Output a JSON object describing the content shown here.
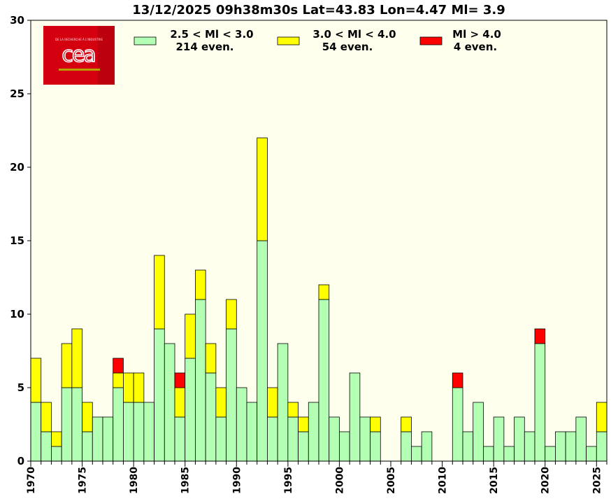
{
  "chart_data": {
    "type": "bar",
    "stacked": true,
    "title": "13/12/2025 09h38m30s Lat=43.83 Lon=4.47 Ml= 3.9",
    "xlabel": "",
    "ylabel": "",
    "ylim": [
      0,
      30
    ],
    "yticks": [
      0,
      5,
      10,
      15,
      20,
      25,
      30
    ],
    "xlim": [
      1970,
      2026
    ],
    "xticks": [
      1970,
      1975,
      1980,
      1985,
      1990,
      1995,
      2000,
      2005,
      2010,
      2015,
      2020,
      2025
    ],
    "legend_position": "top",
    "plot_background": "#ffffee",
    "categories": [
      1970,
      1971,
      1972,
      1973,
      1974,
      1975,
      1976,
      1977,
      1978,
      1979,
      1980,
      1981,
      1982,
      1983,
      1984,
      1985,
      1986,
      1987,
      1988,
      1989,
      1990,
      1991,
      1992,
      1993,
      1994,
      1995,
      1996,
      1997,
      1998,
      1999,
      2000,
      2001,
      2002,
      2003,
      2004,
      2005,
      2006,
      2007,
      2008,
      2009,
      2010,
      2011,
      2012,
      2013,
      2014,
      2015,
      2016,
      2017,
      2018,
      2019,
      2020,
      2021,
      2022,
      2023,
      2024,
      2025
    ],
    "series": [
      {
        "name": "2.5 < Ml <  3.0",
        "count_label": "214 even.",
        "color": "#b3ffb3",
        "values": [
          4,
          2,
          1,
          5,
          5,
          2,
          3,
          3,
          5,
          4,
          4,
          4,
          9,
          8,
          3,
          7,
          11,
          6,
          3,
          9,
          5,
          4,
          15,
          3,
          8,
          3,
          2,
          4,
          11,
          3,
          2,
          6,
          3,
          2,
          0,
          0,
          2,
          1,
          2,
          0,
          0,
          5,
          2,
          4,
          1,
          3,
          1,
          3,
          2,
          8,
          1,
          2,
          2,
          3,
          1,
          2
        ]
      },
      {
        "name": "3.0 < Ml <  4.0",
        "count_label": "54 even.",
        "color": "#ffff00",
        "values": [
          3,
          2,
          1,
          3,
          4,
          2,
          0,
          0,
          1,
          2,
          2,
          0,
          5,
          0,
          2,
          3,
          2,
          2,
          2,
          2,
          0,
          0,
          7,
          2,
          0,
          1,
          1,
          0,
          1,
          0,
          0,
          0,
          0,
          1,
          0,
          0,
          1,
          0,
          0,
          0,
          0,
          0,
          0,
          0,
          0,
          0,
          0,
          0,
          0,
          0,
          0,
          0,
          0,
          0,
          0,
          2
        ]
      },
      {
        "name": "Ml >  4.0",
        "count_label": "4 even.",
        "color": "#ff0000",
        "values": [
          0,
          0,
          0,
          0,
          0,
          0,
          0,
          0,
          1,
          0,
          0,
          0,
          0,
          0,
          1,
          0,
          0,
          0,
          0,
          0,
          0,
          0,
          0,
          0,
          0,
          0,
          0,
          0,
          0,
          0,
          0,
          0,
          0,
          0,
          0,
          0,
          0,
          0,
          0,
          0,
          0,
          1,
          0,
          0,
          0,
          0,
          0,
          0,
          0,
          1,
          0,
          0,
          0,
          0,
          0,
          0
        ]
      }
    ]
  },
  "logo": {
    "name": "cea",
    "tagline": "DE LA RECHERCHE À L'INDUSTRIE",
    "colors": {
      "background": "#d40010",
      "accent": "#b8a000"
    }
  }
}
